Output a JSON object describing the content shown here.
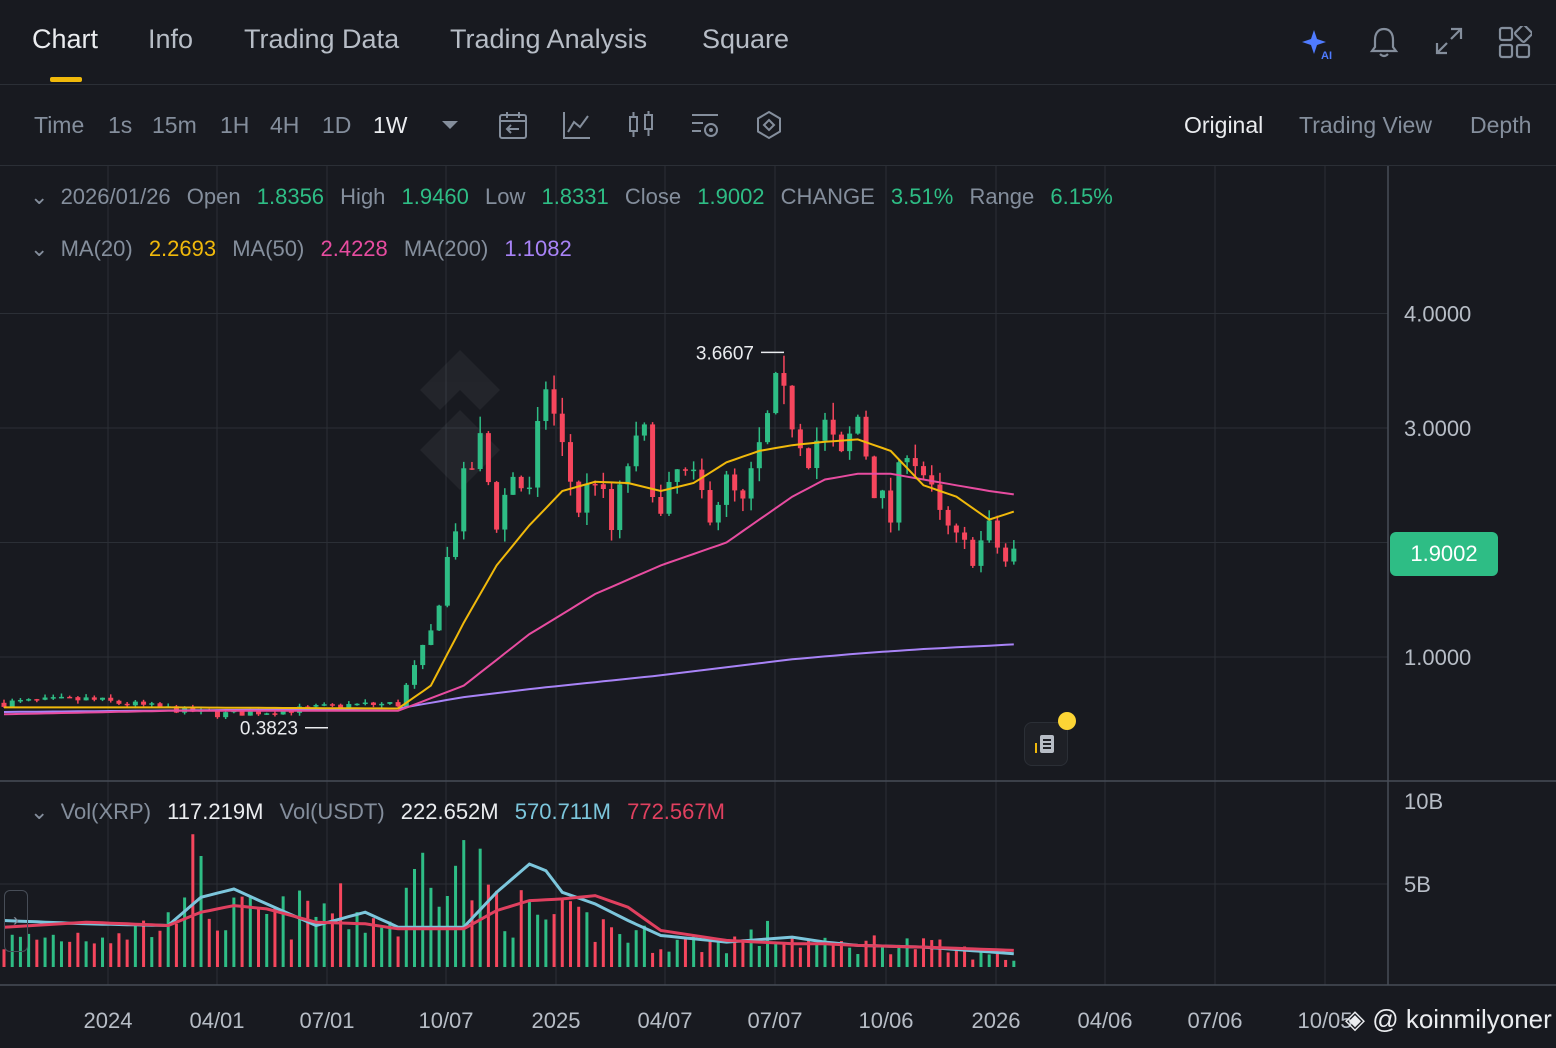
{
  "tabs": [
    {
      "label": "Chart"
    },
    {
      "label": "Info"
    },
    {
      "label": "Trading Data"
    },
    {
      "label": "Trading Analysis"
    },
    {
      "label": "Square"
    }
  ],
  "icons": {
    "ai": "ai-sparkle-icon",
    "bell": "bell-icon",
    "expand": "expand-icon",
    "grid": "grid-icon"
  },
  "toolbar": {
    "intervals": [
      "Time",
      "1s",
      "15m",
      "1H",
      "4H",
      "1D",
      "1W"
    ],
    "active_interval": "1W",
    "views": [
      "Original",
      "Trading View",
      "Depth"
    ],
    "active_view": "Original"
  },
  "ohlc": {
    "date": "2026/01/26",
    "open_label": "Open",
    "open": "1.8356",
    "high_label": "High",
    "high": "1.9460",
    "low_label": "Low",
    "low": "1.8331",
    "close_label": "Close",
    "close": "1.9002",
    "change_label": "CHANGE",
    "change": "3.51%",
    "range_label": "Range",
    "range": "6.15%"
  },
  "ma": {
    "ma20_label": "MA(20)",
    "ma20": "2.2693",
    "ma50_label": "MA(50)",
    "ma50": "2.4228",
    "ma200_label": "MA(200)",
    "ma200": "1.1082"
  },
  "vol": {
    "xrp_label": "Vol(XRP)",
    "xrp": "117.219M",
    "usdt_label": "Vol(USDT)",
    "usdt": "222.652M",
    "ma1": "570.711M",
    "ma2": "772.567M"
  },
  "last_price": "1.9002",
  "watermark_text": "@ koinmilyoner",
  "colors": {
    "up": "#2ebd85",
    "down": "#f6465d",
    "ma20": "#f0b90b",
    "ma50": "#e74ca0",
    "ma200": "#a883f7",
    "vol_ma1": "#7cc6dc",
    "vol_ma2": "#e0405f",
    "bg": "#181a20",
    "grid": "#2b2f36"
  },
  "chart_data": {
    "type": "candlestick",
    "interval": "1W",
    "y_ticks": [
      "4.0000",
      "3.0000",
      "1.0000"
    ],
    "y_tick_values": [
      4.0,
      3.0,
      1.0
    ],
    "x_ticks": [
      "2024",
      "04/01",
      "07/01",
      "10/07",
      "2025",
      "04/07",
      "07/07",
      "10/06",
      "2026",
      "04/06",
      "07/06",
      "10/05"
    ],
    "annotations": [
      {
        "label": "3.6607",
        "value": 3.6607
      },
      {
        "label": "0.3823",
        "value": 0.3823
      }
    ],
    "vol_ticks": [
      "10B",
      "5B"
    ],
    "vol_tick_values": [
      10,
      5
    ],
    "series_anchors": {
      "close": [
        [
          0,
          0.6
        ],
        [
          10,
          0.63
        ],
        [
          20,
          0.55
        ],
        [
          26,
          0.5
        ],
        [
          34,
          0.53
        ],
        [
          42,
          0.58
        ],
        [
          48,
          0.59
        ],
        [
          52,
          1.2
        ],
        [
          56,
          2.5
        ],
        [
          58,
          2.85
        ],
        [
          60,
          2.2
        ],
        [
          62,
          2.6
        ],
        [
          64,
          2.4
        ],
        [
          66,
          3.4
        ],
        [
          68,
          2.8
        ],
        [
          70,
          2.3
        ],
        [
          72,
          2.6
        ],
        [
          74,
          2.1
        ],
        [
          76,
          2.7
        ],
        [
          78,
          2.9
        ],
        [
          80,
          2.2
        ],
        [
          82,
          2.6
        ],
        [
          84,
          2.5
        ],
        [
          86,
          2.3
        ],
        [
          88,
          2.5
        ],
        [
          90,
          2.3
        ],
        [
          92,
          2.8
        ],
        [
          94,
          3.3
        ],
        [
          96,
          3.1
        ],
        [
          98,
          2.8
        ],
        [
          100,
          3.0
        ],
        [
          102,
          2.7
        ],
        [
          104,
          3.1
        ],
        [
          106,
          2.5
        ],
        [
          108,
          2.2
        ],
        [
          110,
          2.9
        ],
        [
          112,
          2.6
        ],
        [
          114,
          2.2
        ],
        [
          116,
          2.0
        ],
        [
          118,
          1.9
        ],
        [
          120,
          2.1
        ],
        [
          122,
          1.83
        ],
        [
          123,
          1.9
        ]
      ],
      "ma20": [
        [
          0,
          0.56
        ],
        [
          20,
          0.56
        ],
        [
          48,
          0.55
        ],
        [
          52,
          0.75
        ],
        [
          56,
          1.3
        ],
        [
          60,
          1.8
        ],
        [
          64,
          2.15
        ],
        [
          68,
          2.45
        ],
        [
          72,
          2.53
        ],
        [
          76,
          2.52
        ],
        [
          80,
          2.45
        ],
        [
          84,
          2.52
        ],
        [
          88,
          2.7
        ],
        [
          92,
          2.8
        ],
        [
          96,
          2.85
        ],
        [
          100,
          2.88
        ],
        [
          104,
          2.9
        ],
        [
          108,
          2.8
        ],
        [
          112,
          2.5
        ],
        [
          116,
          2.4
        ],
        [
          120,
          2.2
        ],
        [
          123,
          2.27
        ]
      ],
      "ma50": [
        [
          0,
          0.5
        ],
        [
          20,
          0.53
        ],
        [
          48,
          0.53
        ],
        [
          56,
          0.75
        ],
        [
          64,
          1.2
        ],
        [
          72,
          1.55
        ],
        [
          80,
          1.8
        ],
        [
          88,
          2.0
        ],
        [
          92,
          2.2
        ],
        [
          96,
          2.4
        ],
        [
          100,
          2.55
        ],
        [
          104,
          2.6
        ],
        [
          108,
          2.6
        ],
        [
          112,
          2.55
        ],
        [
          116,
          2.5
        ],
        [
          120,
          2.45
        ],
        [
          123,
          2.42
        ]
      ],
      "ma200": [
        [
          0,
          0.52
        ],
        [
          48,
          0.55
        ],
        [
          56,
          0.65
        ],
        [
          64,
          0.72
        ],
        [
          72,
          0.78
        ],
        [
          80,
          0.84
        ],
        [
          88,
          0.91
        ],
        [
          96,
          0.98
        ],
        [
          104,
          1.03
        ],
        [
          112,
          1.07
        ],
        [
          123,
          1.11
        ]
      ],
      "volume_billions": [
        [
          0,
          1.5
        ],
        [
          20,
          2.5
        ],
        [
          22,
          6.5
        ],
        [
          26,
          3.0
        ],
        [
          34,
          3.0
        ],
        [
          40,
          3.5
        ],
        [
          48,
          2.5
        ],
        [
          52,
          7.5
        ],
        [
          56,
          6.0
        ],
        [
          60,
          4.0
        ],
        [
          64,
          3.0
        ],
        [
          72,
          2.5
        ],
        [
          80,
          1.5
        ],
        [
          88,
          1.5
        ],
        [
          94,
          2.0
        ],
        [
          100,
          1.2
        ],
        [
          108,
          1.5
        ],
        [
          116,
          1.0
        ],
        [
          123,
          0.5
        ]
      ],
      "vol_ma1": [
        [
          0,
          2.8
        ],
        [
          10,
          2.6
        ],
        [
          20,
          2.5
        ],
        [
          24,
          4.2
        ],
        [
          28,
          4.7
        ],
        [
          32,
          3.8
        ],
        [
          38,
          2.5
        ],
        [
          44,
          3.3
        ],
        [
          48,
          2.4
        ],
        [
          56,
          2.4
        ],
        [
          60,
          4.5
        ],
        [
          64,
          6.2
        ],
        [
          66,
          5.8
        ],
        [
          68,
          4.5
        ],
        [
          72,
          3.8
        ],
        [
          76,
          2.8
        ],
        [
          80,
          1.9
        ],
        [
          88,
          1.5
        ],
        [
          96,
          1.8
        ],
        [
          100,
          1.5
        ],
        [
          104,
          1.3
        ],
        [
          112,
          1.2
        ],
        [
          123,
          0.8
        ]
      ],
      "vol_ma2": [
        [
          0,
          2.4
        ],
        [
          10,
          2.7
        ],
        [
          20,
          2.5
        ],
        [
          24,
          3.3
        ],
        [
          28,
          3.7
        ],
        [
          32,
          3.5
        ],
        [
          38,
          2.7
        ],
        [
          44,
          2.6
        ],
        [
          48,
          2.3
        ],
        [
          56,
          2.3
        ],
        [
          60,
          3.4
        ],
        [
          64,
          4.0
        ],
        [
          68,
          4.1
        ],
        [
          72,
          4.3
        ],
        [
          76,
          3.6
        ],
        [
          80,
          2.2
        ],
        [
          88,
          1.6
        ],
        [
          96,
          1.4
        ],
        [
          100,
          1.4
        ],
        [
          104,
          1.3
        ],
        [
          112,
          1.2
        ],
        [
          123,
          1.0
        ]
      ]
    },
    "candles": 124
  }
}
